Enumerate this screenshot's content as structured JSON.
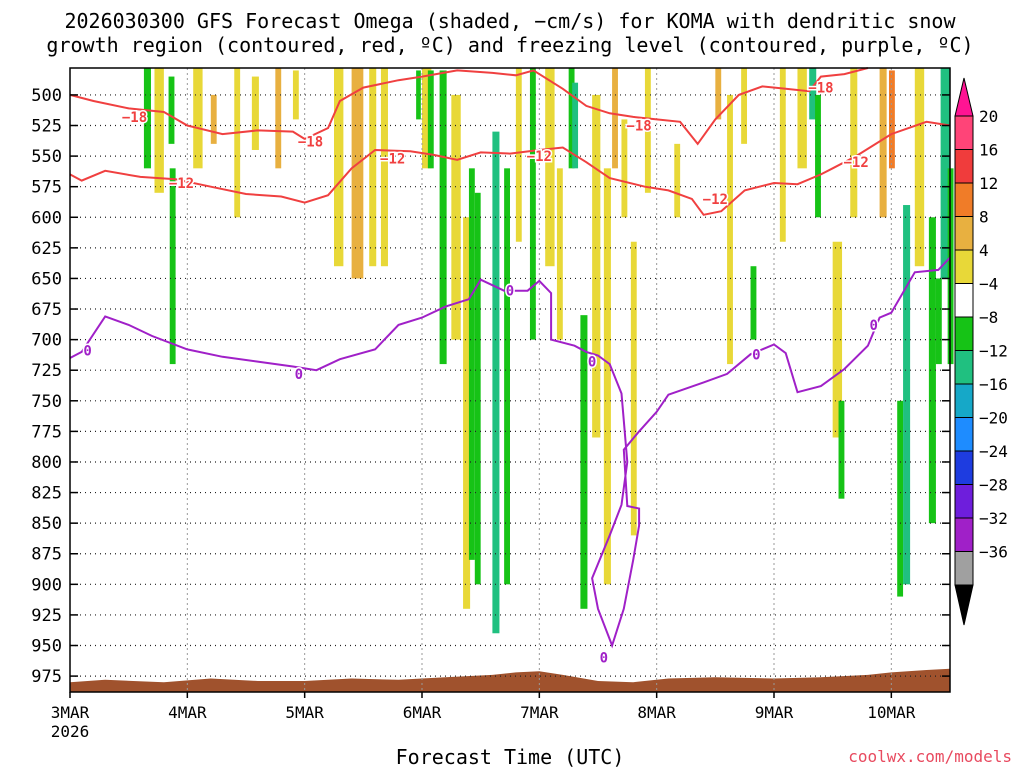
{
  "chart_data": {
    "type": "heatmap",
    "title_line1": "2026030300 GFS Forecast Omega (shaded, −cm/s) for KOMA with dendritic snow",
    "title_line2": "growth region (contoured, red, ºC) and freezing level (contoured, purple, ºC)",
    "xlabel": "Forecast Time (UTC)",
    "credit": "coolwx.com/models",
    "x_ticks": [
      {
        "day": 0,
        "label": "3MAR"
      },
      {
        "day": 1,
        "label": "4MAR"
      },
      {
        "day": 2,
        "label": "5MAR"
      },
      {
        "day": 3,
        "label": "6MAR"
      },
      {
        "day": 4,
        "label": "7MAR"
      },
      {
        "day": 5,
        "label": "8MAR"
      },
      {
        "day": 6,
        "label": "9MAR"
      },
      {
        "day": 7,
        "label": "10MAR"
      }
    ],
    "x_year": "2026",
    "x_range_days": [
      0,
      7.5
    ],
    "y_range_hpa": [
      478,
      988
    ],
    "y_ticks": [
      500,
      525,
      550,
      575,
      600,
      625,
      650,
      675,
      700,
      725,
      750,
      775,
      800,
      825,
      850,
      875,
      900,
      925,
      950,
      975
    ],
    "colorbar": {
      "labels": [
        "20",
        "16",
        "12",
        "8",
        "4",
        "−4",
        "−8",
        "−12",
        "−16",
        "−20",
        "−24",
        "−28",
        "−32",
        "−36"
      ],
      "colors": [
        "#ff4478",
        "#f03c3c",
        "#f07c28",
        "#e8b040",
        "#e8d838",
        "#ffffff",
        "#16c316",
        "#20c080",
        "#16a8c8",
        "#1e8cff",
        "#1e3ce0",
        "#6e1edc",
        "#a020c8",
        "#a0a0a0"
      ],
      "top_arrow_color": "#ff1493",
      "bottom_arrow_color": "#000000"
    },
    "contour_labels": {
      "minus18": "−18",
      "minus12": "−12",
      "zero": "0"
    },
    "series": [
      {
        "name": "minus12",
        "color": "#f04040",
        "points": [
          [
            0,
            565
          ],
          [
            0.1,
            570
          ],
          [
            0.3,
            562
          ],
          [
            0.6,
            567
          ],
          [
            0.9,
            569
          ],
          [
            1.2,
            575
          ],
          [
            1.5,
            581
          ],
          [
            1.8,
            583
          ],
          [
            2.0,
            588
          ],
          [
            2.2,
            582
          ],
          [
            2.4,
            560
          ],
          [
            2.6,
            545
          ],
          [
            2.9,
            546
          ],
          [
            3.1,
            549
          ],
          [
            3.3,
            553
          ],
          [
            3.5,
            547
          ],
          [
            3.75,
            548
          ],
          [
            4.0,
            545
          ],
          [
            4.2,
            543
          ],
          [
            4.4,
            555
          ],
          [
            4.6,
            568
          ],
          [
            4.9,
            575
          ],
          [
            5.1,
            578
          ],
          [
            5.3,
            585
          ],
          [
            5.4,
            598
          ],
          [
            5.55,
            595
          ],
          [
            5.75,
            578
          ],
          [
            6.0,
            572
          ],
          [
            6.2,
            573
          ],
          [
            6.4,
            565
          ],
          [
            6.5,
            560
          ],
          [
            6.7,
            550
          ],
          [
            7.0,
            532
          ],
          [
            7.3,
            522
          ],
          [
            7.5,
            525
          ]
        ]
      },
      {
        "name": "minus18",
        "color": "#f04040",
        "points": [
          [
            0,
            500
          ],
          [
            0.2,
            505
          ],
          [
            0.5,
            511
          ],
          [
            0.8,
            514
          ],
          [
            1.0,
            525
          ],
          [
            1.3,
            532
          ],
          [
            1.6,
            529
          ],
          [
            1.9,
            530
          ],
          [
            2.0,
            536
          ],
          [
            2.2,
            527
          ],
          [
            2.3,
            505
          ],
          [
            2.5,
            494
          ],
          [
            2.8,
            488
          ],
          [
            3.0,
            485
          ],
          [
            3.3,
            480
          ],
          [
            3.6,
            482
          ],
          [
            3.8,
            484
          ],
          [
            3.95,
            480
          ],
          [
            4.2,
            495
          ],
          [
            4.4,
            509
          ],
          [
            4.6,
            515
          ],
          [
            4.8,
            518
          ],
          [
            5.0,
            520
          ],
          [
            5.2,
            522
          ],
          [
            5.35,
            540
          ],
          [
            5.5,
            520
          ],
          [
            5.7,
            500
          ],
          [
            5.9,
            493
          ],
          [
            6.1,
            495
          ],
          [
            6.3,
            497
          ],
          [
            6.4,
            485
          ],
          [
            6.6,
            483
          ],
          [
            6.8,
            478
          ]
        ]
      },
      {
        "name": "zero",
        "color": "#a020c8",
        "points": [
          [
            0,
            715
          ],
          [
            0.1,
            710
          ],
          [
            0.3,
            681
          ],
          [
            0.5,
            688
          ],
          [
            0.7,
            697
          ],
          [
            1.0,
            708
          ],
          [
            1.3,
            714
          ],
          [
            1.6,
            718
          ],
          [
            1.9,
            722
          ],
          [
            2.1,
            725
          ],
          [
            2.3,
            716
          ],
          [
            2.6,
            708
          ],
          [
            2.8,
            688
          ],
          [
            3.0,
            682
          ],
          [
            3.2,
            673
          ],
          [
            3.4,
            667
          ],
          [
            3.5,
            651
          ],
          [
            3.7,
            660
          ],
          [
            3.9,
            660
          ],
          [
            4.0,
            652
          ],
          [
            4.1,
            662
          ],
          [
            4.1,
            700
          ],
          [
            4.3,
            705
          ],
          [
            4.4,
            710
          ],
          [
            4.5,
            713
          ],
          [
            4.6,
            720
          ],
          [
            4.7,
            744
          ],
          [
            4.75,
            800
          ],
          [
            4.7,
            835
          ],
          [
            4.6,
            860
          ],
          [
            4.45,
            895
          ],
          [
            4.5,
            920
          ],
          [
            4.62,
            950
          ],
          [
            4.72,
            920
          ],
          [
            4.8,
            880
          ],
          [
            4.85,
            852
          ],
          [
            4.85,
            838
          ],
          [
            4.75,
            836
          ],
          [
            4.72,
            790
          ],
          [
            4.85,
            775
          ],
          [
            5.0,
            759
          ],
          [
            5.1,
            745
          ],
          [
            5.25,
            740
          ],
          [
            5.4,
            735
          ],
          [
            5.6,
            728
          ],
          [
            5.8,
            712
          ],
          [
            6.0,
            704
          ],
          [
            6.1,
            711
          ],
          [
            6.2,
            743
          ],
          [
            6.4,
            738
          ],
          [
            6.6,
            724
          ],
          [
            6.8,
            705
          ],
          [
            6.9,
            682
          ],
          [
            7.0,
            678
          ],
          [
            7.2,
            645
          ],
          [
            7.4,
            643
          ],
          [
            7.5,
            633
          ]
        ]
      }
    ],
    "omega_shading_legend": "Omega shaded in −cm/s; 4 to 8 yellow, 8 to 12 gold, 12 to 16 orange, −4 to −8 green, −8 to −12 teal",
    "terrain_color": "#a0522d"
  }
}
